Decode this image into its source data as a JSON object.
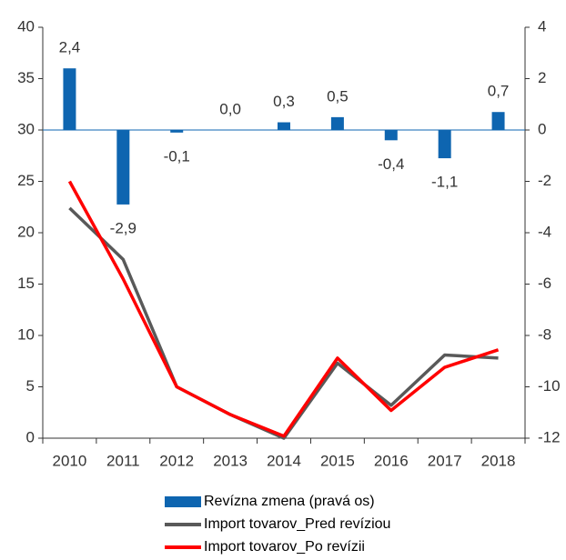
{
  "chart_data": {
    "type": "combo",
    "categories": [
      "2010",
      "2011",
      "2012",
      "2013",
      "2014",
      "2015",
      "2016",
      "2017",
      "2018"
    ],
    "series": [
      {
        "name": "Revízna zmena (pravá os)",
        "type": "bar",
        "axis": "y2",
        "color": "#0e65b0",
        "values": [
          2.4,
          -2.9,
          -0.1,
          0.0,
          0.3,
          0.5,
          -0.4,
          -1.1,
          0.7
        ],
        "value_labels": [
          "2,4",
          "-2,9",
          "-0,1",
          "0,0",
          "0,3",
          "0,5",
          "-0,4",
          "-1,1",
          "0,7"
        ]
      },
      {
        "name": "Import tovarov_Pred revíziou",
        "type": "line",
        "color": "#595959",
        "values": [
          22.4,
          17.4,
          5.0,
          2.3,
          0.0,
          7.3,
          3.2,
          8.1,
          7.8
        ]
      },
      {
        "name": "Import tovarov_Po revízii",
        "type": "line",
        "color": "#ff0000",
        "values": [
          25.0,
          15.5,
          5.0,
          2.3,
          0.2,
          7.8,
          2.7,
          6.9,
          8.6
        ]
      }
    ],
    "ylim": [
      0,
      40
    ],
    "yticks": [
      0,
      5,
      10,
      15,
      20,
      25,
      30,
      35,
      40
    ],
    "y2lim": [
      -12,
      4
    ],
    "y2ticks": [
      -12,
      -10,
      -8,
      -6,
      -4,
      -2,
      0,
      2,
      4
    ]
  }
}
